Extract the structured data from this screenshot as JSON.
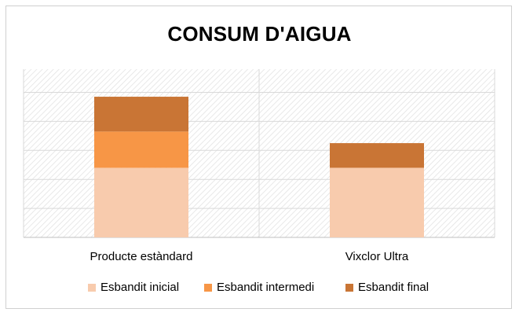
{
  "chart_data": {
    "type": "bar",
    "stacked": true,
    "title": "CONSUM D'AIGUA",
    "categories": [
      "Producte estàndard",
      "Vixclor Ultra"
    ],
    "series": [
      {
        "name": "Esbandit inicial",
        "color": "#F8CBAD",
        "values": [
          2.4,
          2.4
        ]
      },
      {
        "name": "Esbandit intermedi",
        "color": "#F79646",
        "values": [
          1.25,
          0
        ]
      },
      {
        "name": "Esbandit final",
        "color": "#C97535",
        "values": [
          1.2,
          0.85
        ]
      }
    ],
    "ylim": [
      0,
      5.8
    ],
    "grid": true,
    "legend_position": "bottom",
    "y_axis_labels_visible": false
  }
}
